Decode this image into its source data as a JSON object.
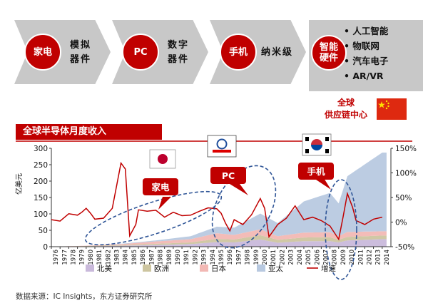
{
  "stages": [
    {
      "circle": "家电",
      "text1": "模拟",
      "text2": "器件"
    },
    {
      "circle": "PC",
      "text1": "数字",
      "text2": "器件"
    },
    {
      "circle": "手机",
      "text1": "纳米级",
      "text2": ""
    },
    {
      "circle1": "智能",
      "circle2": "硬件"
    }
  ],
  "bullets": [
    "人工智能",
    "物联网",
    "汽车电子",
    "AR/VR"
  ],
  "hub": {
    "line1": "全球",
    "line2": "供应链中心"
  },
  "chart_title": "全球半导体月度收入",
  "callouts": {
    "appliance": "家电",
    "pc": "PC",
    "phone": "手机"
  },
  "source": "数据来源：IC Insights，东方证券研究所",
  "colors": {
    "accent": "#c00000",
    "chevron": "#c8c8c8",
    "na": "#c9b9db",
    "eu": "#cdc5a0",
    "jp": "#f2b8b4",
    "ap": "#b8c9e0",
    "growth": "#c00000",
    "ellipse": "#2f5597"
  },
  "chart_data": {
    "type": "area",
    "ylabel": "亿美元",
    "ylim": [
      0,
      300
    ],
    "y2lim": [
      -50,
      150
    ],
    "yticks": [
      0,
      50,
      100,
      150,
      200,
      250,
      300
    ],
    "y2ticks": [
      "-50%",
      "0%",
      "50%",
      "100%",
      "150%"
    ],
    "xlim": [
      1976,
      2015
    ],
    "xticks": [
      "1976",
      "1977",
      "1978",
      "1979",
      "1980",
      "1981",
      "1982",
      "1983",
      "1984",
      "1985",
      "1986",
      "1987",
      "1988",
      "1989",
      "1990",
      "1991",
      "1992",
      "1993",
      "1994",
      "1995",
      "1996",
      "1997",
      "1998",
      "1999",
      "2000",
      "2001",
      "2002",
      "2003",
      "2004",
      "2005",
      "2006",
      "2007",
      "2008",
      "2009",
      "2010",
      "2011",
      "2012",
      "2013",
      "2014"
    ],
    "legend_position": "bottom",
    "series": [
      {
        "name": "北美",
        "values": [
          [
            1976,
            0
          ],
          [
            1980,
            1
          ],
          [
            1984,
            3
          ],
          [
            1988,
            5
          ],
          [
            1992,
            8
          ],
          [
            1995,
            14
          ],
          [
            1997,
            13
          ],
          [
            2000,
            22
          ],
          [
            2002,
            12
          ],
          [
            2005,
            17
          ],
          [
            2008,
            17
          ],
          [
            2009,
            13
          ],
          [
            2010,
            19
          ],
          [
            2014,
            23
          ]
        ]
      },
      {
        "name": "欧洲",
        "values": [
          [
            1976,
            0
          ],
          [
            1980,
            1
          ],
          [
            1984,
            2
          ],
          [
            1988,
            4
          ],
          [
            1992,
            5
          ],
          [
            1995,
            10
          ],
          [
            1997,
            9
          ],
          [
            2000,
            13
          ],
          [
            2002,
            9
          ],
          [
            2005,
            11
          ],
          [
            2008,
            12
          ],
          [
            2009,
            8
          ],
          [
            2010,
            11
          ],
          [
            2014,
            11
          ]
        ]
      },
      {
        "name": "日本",
        "values": [
          [
            1976,
            0
          ],
          [
            1980,
            1
          ],
          [
            1984,
            3
          ],
          [
            1988,
            7
          ],
          [
            1992,
            10
          ],
          [
            1995,
            17
          ],
          [
            1997,
            14
          ],
          [
            2000,
            18
          ],
          [
            2002,
            11
          ],
          [
            2005,
            15
          ],
          [
            2008,
            15
          ],
          [
            2009,
            11
          ],
          [
            2010,
            15
          ],
          [
            2014,
            13
          ]
        ]
      },
      {
        "name": "亚太",
        "values": [
          [
            1976,
            0
          ],
          [
            1980,
            0
          ],
          [
            1984,
            1
          ],
          [
            1988,
            3
          ],
          [
            1992,
            9
          ],
          [
            1995,
            20
          ],
          [
            1997,
            22
          ],
          [
            2000,
            48
          ],
          [
            2002,
            40
          ],
          [
            2005,
            95
          ],
          [
            2008,
            120
          ],
          [
            2009,
            100
          ],
          [
            2010,
            170
          ],
          [
            2014,
            240
          ]
        ]
      },
      {
        "name": "增速",
        "axis": "right",
        "values": [
          [
            1976,
            5
          ],
          [
            1977,
            2
          ],
          [
            1978,
            17
          ],
          [
            1979,
            14
          ],
          [
            1979.5,
            20
          ],
          [
            1980,
            28
          ],
          [
            1980.5,
            18
          ],
          [
            1981,
            6
          ],
          [
            1982,
            8
          ],
          [
            1983,
            28
          ],
          [
            1984,
            120
          ],
          [
            1984.5,
            108
          ],
          [
            1985,
            -28
          ],
          [
            1985.7,
            -5
          ],
          [
            1986,
            25
          ],
          [
            1987,
            22
          ],
          [
            1988,
            24
          ],
          [
            1989,
            10
          ],
          [
            1990,
            20
          ],
          [
            1991,
            13
          ],
          [
            1992,
            14
          ],
          [
            1993,
            22
          ],
          [
            1994,
            29
          ],
          [
            1995,
            27
          ],
          [
            1995.5,
            18
          ],
          [
            1996,
            -2
          ],
          [
            1996.5,
            -18
          ],
          [
            1997,
            5
          ],
          [
            1998,
            -5
          ],
          [
            1999,
            15
          ],
          [
            2000,
            48
          ],
          [
            2000.5,
            28
          ],
          [
            2001,
            -30
          ],
          [
            2002,
            -5
          ],
          [
            2003,
            8
          ],
          [
            2004,
            33
          ],
          [
            2005,
            5
          ],
          [
            2006,
            10
          ],
          [
            2007,
            3
          ],
          [
            2008,
            -8
          ],
          [
            2009,
            -35
          ],
          [
            2009.5,
            10
          ],
          [
            2010,
            58
          ],
          [
            2010.6,
            30
          ],
          [
            2011,
            3
          ],
          [
            2012,
            -5
          ],
          [
            2013,
            6
          ],
          [
            2014,
            10
          ]
        ]
      }
    ]
  }
}
